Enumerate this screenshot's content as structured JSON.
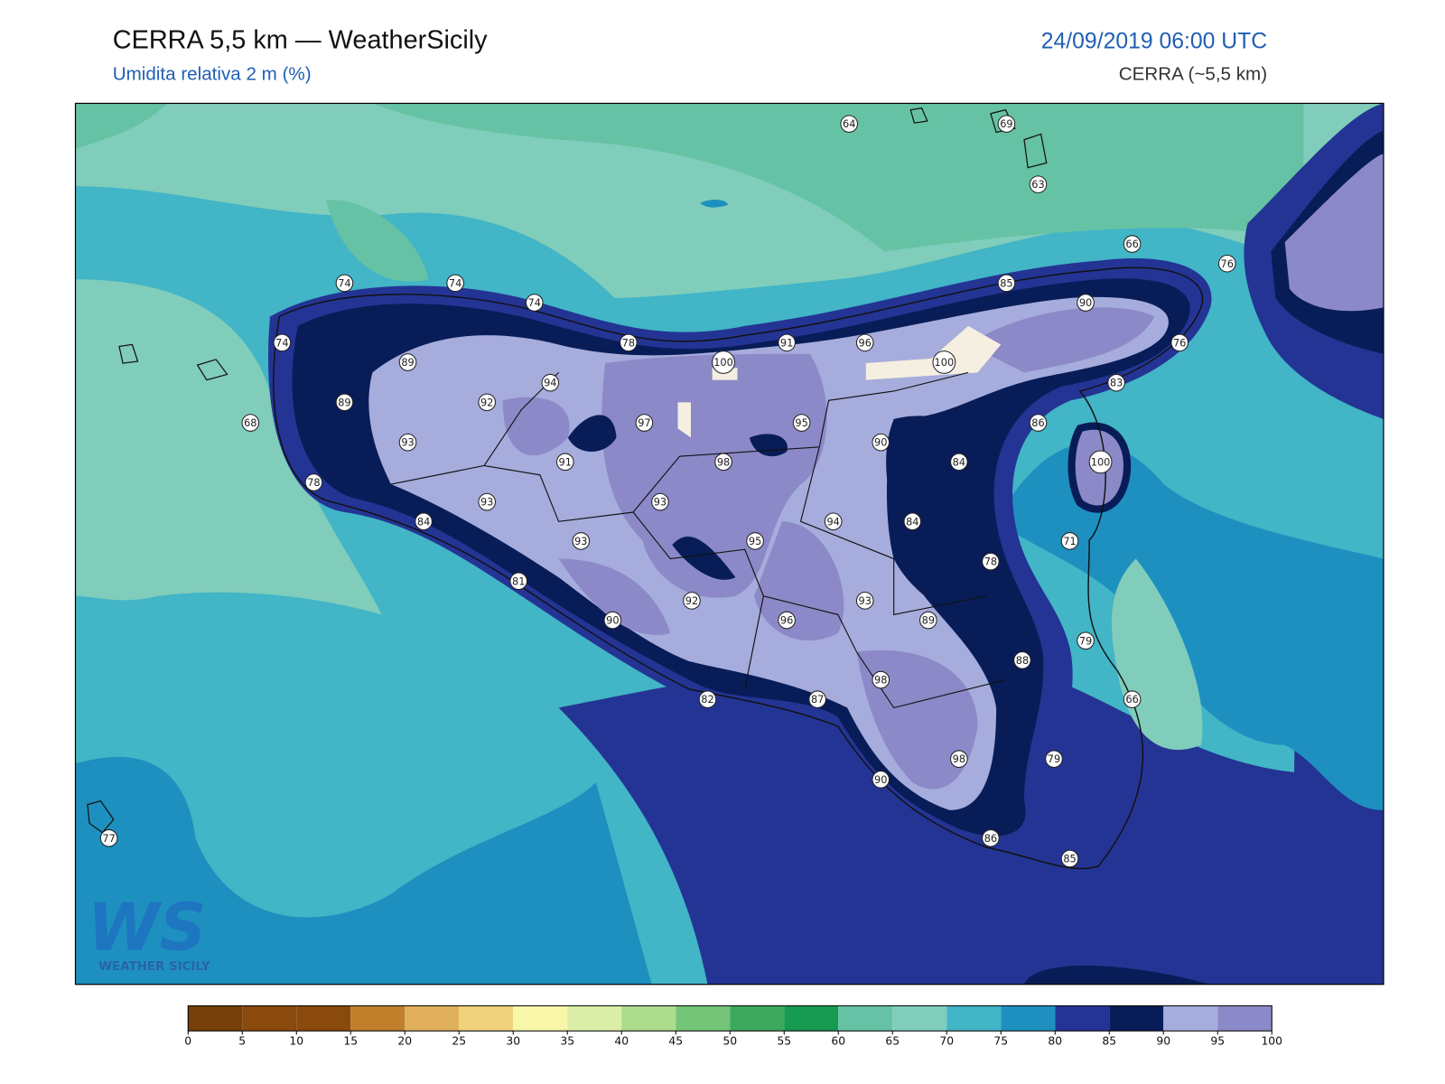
{
  "header": {
    "title": "CERRA 5,5 km — WeatherSicily",
    "subtitle": "Umidita relativa 2 m (%)",
    "date": "24/09/2019 06:00 UTC",
    "model": "CERRA (~5,5 km)"
  },
  "stations": [
    64,
    69,
    63,
    66,
    76,
    74,
    74,
    74,
    85,
    90,
    74,
    78,
    100,
    91,
    96,
    100,
    76,
    89,
    94,
    83,
    89,
    92,
    97,
    95,
    86,
    68,
    93,
    91,
    98,
    90,
    84,
    100,
    78,
    93,
    93,
    94,
    84,
    84,
    93,
    95,
    71,
    78,
    81,
    92,
    93,
    90,
    96,
    89,
    79,
    88,
    98,
    82,
    87,
    66,
    98,
    79,
    90,
    77,
    86,
    85
  ],
  "colorbar": {
    "ticks": [
      0,
      5,
      10,
      15,
      20,
      25,
      30,
      35,
      40,
      45,
      50,
      55,
      60,
      65,
      70,
      75,
      80,
      85,
      90,
      95,
      100
    ],
    "colors": [
      "#75400a",
      "#8a4a0e",
      "#8a4a0e",
      "#bf7f2b",
      "#dfaf5b",
      "#f0d27c",
      "#f7f6a9",
      "#daeea8",
      "#acdc8e",
      "#74c478",
      "#3ca95d",
      "#179a52",
      "#66c2a4",
      "#80cdbb",
      "#42b5c6",
      "#1d90c0",
      "#243494",
      "#081d58",
      "#a6acdc",
      "#8c89c8"
    ]
  },
  "logo": {
    "mark": "WS",
    "text": "WEATHER SICILY"
  }
}
